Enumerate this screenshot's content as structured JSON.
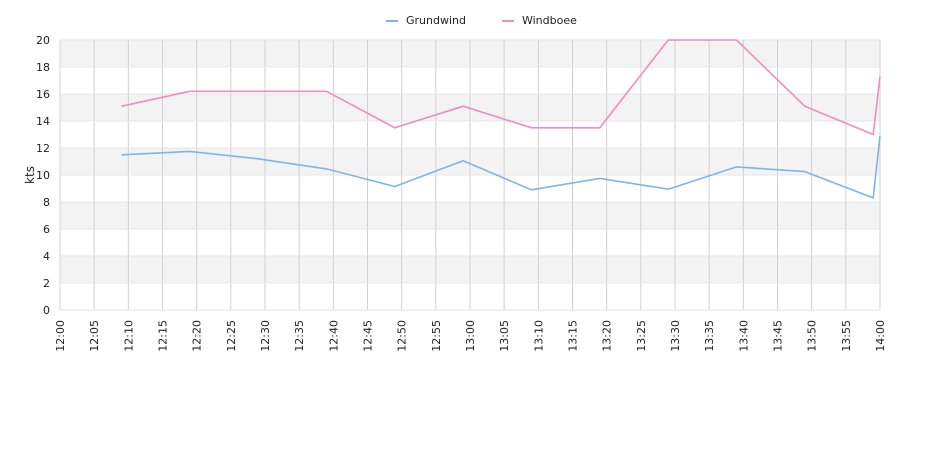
{
  "chart_data": {
    "type": "line",
    "ylabel": "kts",
    "ylim": [
      0,
      20
    ],
    "yticks": [
      "0",
      "2",
      "4",
      "6",
      "8",
      "10",
      "12",
      "14",
      "16",
      "18",
      "20"
    ],
    "xlim": [
      "12:00",
      "14:00"
    ],
    "xticks": [
      "12:00",
      "12:05",
      "12:10",
      "12:15",
      "12:20",
      "12:25",
      "12:30",
      "12:35",
      "12:40",
      "12:45",
      "12:50",
      "12:55",
      "13:00",
      "13:05",
      "13:10",
      "13:15",
      "13:20",
      "13:25",
      "13:30",
      "13:35",
      "13:40",
      "13:45",
      "13:50",
      "13:55",
      "14:00"
    ],
    "legend_position": "top-center",
    "grid": true,
    "series": [
      {
        "name": "Grundwind",
        "color": "#7cb5ec",
        "points": [
          {
            "x": "12:09",
            "y": 11.5
          },
          {
            "x": "12:19",
            "y": 11.75
          },
          {
            "x": "12:29",
            "y": 11.2
          },
          {
            "x": "12:39",
            "y": 10.45
          },
          {
            "x": "12:49",
            "y": 9.15
          },
          {
            "x": "12:59",
            "y": 11.05
          },
          {
            "x": "13:09",
            "y": 8.9
          },
          {
            "x": "13:19",
            "y": 9.75
          },
          {
            "x": "13:29",
            "y": 8.95
          },
          {
            "x": "13:39",
            "y": 10.6
          },
          {
            "x": "13:49",
            "y": 10.25
          },
          {
            "x": "13:59",
            "y": 8.3
          },
          {
            "x": "14:00",
            "y": 12.9
          }
        ]
      },
      {
        "name": "Windboee",
        "color": "#f08cbf",
        "points": [
          {
            "x": "12:09",
            "y": 15.1
          },
          {
            "x": "12:19",
            "y": 16.2
          },
          {
            "x": "12:29",
            "y": 16.2
          },
          {
            "x": "12:39",
            "y": 16.2
          },
          {
            "x": "12:49",
            "y": 13.5
          },
          {
            "x": "12:59",
            "y": 15.1
          },
          {
            "x": "13:09",
            "y": 13.5
          },
          {
            "x": "13:19",
            "y": 13.5
          },
          {
            "x": "13:29",
            "y": 20.0
          },
          {
            "x": "13:39",
            "y": 20.0
          },
          {
            "x": "13:49",
            "y": 15.1
          },
          {
            "x": "13:59",
            "y": 13.0
          },
          {
            "x": "14:00",
            "y": 17.3
          }
        ]
      }
    ]
  }
}
